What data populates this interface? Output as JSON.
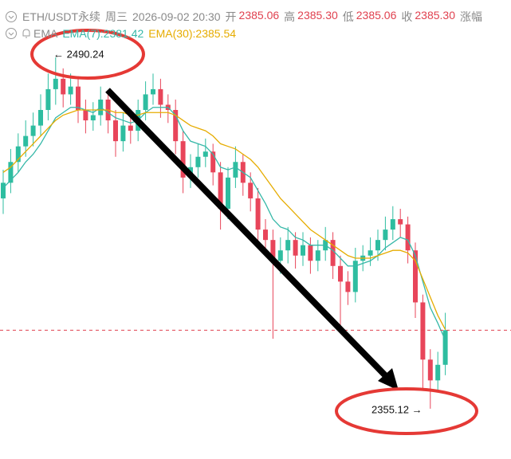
{
  "chart_data": {
    "type": "candlestick",
    "header": {
      "symbol": "ETH/USDT永续",
      "weekday": "周三",
      "datetime": "2026-09-02 20:30",
      "fields": [
        {
          "label": "开",
          "value": "2385.06"
        },
        {
          "label": "高",
          "value": "2385.30"
        },
        {
          "label": "低",
          "value": "2385.06"
        },
        {
          "label": "收",
          "value": "2385.30"
        },
        {
          "label": "涨幅"
        }
      ]
    },
    "indicator": "EMA",
    "up_color": "#2ebda0",
    "down_color": "#e8455a",
    "ylim": [
      2337,
      2508
    ],
    "open": [
      2436,
      2442,
      2450,
      2456,
      2460,
      2464,
      2470,
      2478,
      2482,
      2476,
      2479,
      2470,
      2466,
      2468,
      2474,
      2466,
      2458,
      2464,
      2462,
      2470,
      2476,
      2478,
      2472,
      2470,
      2458,
      2444,
      2448,
      2452,
      2454,
      2446,
      2432,
      2444,
      2450,
      2442,
      2436,
      2424,
      2420,
      2412,
      2416,
      2420,
      2414,
      2418,
      2412,
      2416,
      2420,
      2410,
      2404,
      2400,
      2412,
      2414,
      2416,
      2420,
      2424,
      2428,
      2426,
      2416,
      2396,
      2374,
      2366,
      2372
    ],
    "high": [
      2447,
      2455,
      2461,
      2466,
      2469,
      2476,
      2484,
      2490.24,
      2486,
      2484,
      2483,
      2474,
      2473,
      2479,
      2477,
      2470,
      2469,
      2468,
      2474,
      2481,
      2484,
      2482,
      2476,
      2474,
      2462,
      2453,
      2457,
      2459,
      2457,
      2450,
      2448,
      2456,
      2453,
      2446,
      2440,
      2428,
      2424,
      2421,
      2425,
      2423,
      2423,
      2421,
      2420,
      2425,
      2423,
      2414,
      2408,
      2417,
      2418,
      2421,
      2424,
      2429,
      2433,
      2432,
      2429,
      2419,
      2399,
      2378,
      2377,
      2392
    ],
    "low": [
      2430,
      2438,
      2446,
      2452,
      2456,
      2460,
      2466,
      2472,
      2471,
      2472,
      2465,
      2461,
      2462,
      2464,
      2461,
      2452,
      2454,
      2457,
      2458,
      2466,
      2472,
      2467,
      2465,
      2453,
      2438,
      2440,
      2444,
      2448,
      2441,
      2424,
      2428,
      2440,
      2437,
      2431,
      2419,
      2415,
      2382,
      2407,
      2411,
      2409,
      2410,
      2407,
      2408,
      2412,
      2405,
      2386,
      2395,
      2396,
      2408,
      2410,
      2412,
      2416,
      2420,
      2421,
      2411,
      2390,
      2362,
      2355.12,
      2362,
      2368
    ],
    "close": [
      2442,
      2450,
      2456,
      2460,
      2464,
      2470,
      2478,
      2482,
      2476,
      2479,
      2470,
      2466,
      2468,
      2474,
      2466,
      2458,
      2464,
      2462,
      2470,
      2476,
      2478,
      2472,
      2470,
      2458,
      2444,
      2448,
      2452,
      2454,
      2446,
      2432,
      2444,
      2450,
      2442,
      2436,
      2424,
      2420,
      2412,
      2416,
      2420,
      2414,
      2418,
      2412,
      2416,
      2420,
      2410,
      2404,
      2400,
      2412,
      2414,
      2416,
      2420,
      2424,
      2428,
      2426,
      2416,
      2396,
      2374,
      2366,
      2372,
      2385.3
    ],
    "lines": [
      {
        "name": "EMA(7):2381.42",
        "color": "#36b8a8",
        "values": [
          2440,
          2443,
          2446,
          2450,
          2453,
          2457,
          2462,
          2467,
          2469,
          2471,
          2471,
          2470,
          2469,
          2471,
          2469,
          2467,
          2466,
          2465,
          2466,
          2469,
          2471,
          2471,
          2471,
          2468,
          2462,
          2458,
          2457,
          2456,
          2453,
          2448,
          2447,
          2448,
          2446,
          2444,
          2439,
          2434,
          2428,
          2425,
          2424,
          2421,
          2420,
          2418,
          2418,
          2418,
          2416,
          2413,
          2410,
          2410,
          2411,
          2412,
          2414,
          2417,
          2419,
          2421,
          2420,
          2414,
          2404,
          2394,
          2388,
          2381.42
        ]
      },
      {
        "name": "EMA(30):2385.54",
        "color": "#e6ac00",
        "values": [
          2446,
          2448,
          2451,
          2454,
          2457,
          2460,
          2463,
          2466,
          2468,
          2469,
          2470,
          2470,
          2470,
          2470,
          2470,
          2469,
          2469,
          2468,
          2468,
          2469,
          2469,
          2469,
          2469,
          2468,
          2466,
          2464,
          2463,
          2462,
          2460,
          2457,
          2456,
          2455,
          2453,
          2451,
          2448,
          2444,
          2440,
          2436,
          2433,
          2430,
          2427,
          2424,
          2422,
          2420,
          2418,
          2416,
          2414,
          2413,
          2413,
          2413,
          2414,
          2415,
          2416,
          2416,
          2415,
          2412,
          2405,
          2398,
          2391,
          2385.54
        ]
      }
    ],
    "annotations": [
      {
        "text": "← 2490.24"
      },
      {
        "text": "2355.12 →"
      }
    ]
  }
}
